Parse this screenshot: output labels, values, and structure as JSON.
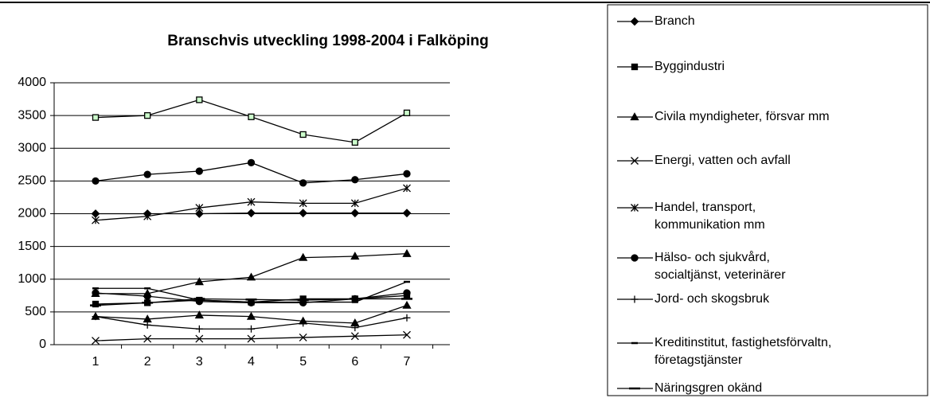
{
  "chart_data": {
    "type": "line",
    "title": "Branschvis utveckling 1998-2004 i Falköping",
    "categories": [
      "1",
      "2",
      "3",
      "4",
      "5",
      "6",
      "7"
    ],
    "ylim": [
      0,
      4000
    ],
    "yticks": [
      0,
      500,
      1000,
      1500,
      2000,
      2500,
      3000,
      3500,
      4000
    ],
    "grid": true,
    "series": [
      {
        "name": "Branch",
        "color": "#000000",
        "marker": "diamond",
        "values": [
          2000,
          2000,
          2000,
          2010,
          2010,
          2010,
          2010
        ]
      },
      {
        "name": "Byggindustri",
        "color": "#000000",
        "marker": "square",
        "values": [
          620,
          640,
          680,
          650,
          700,
          700,
          750
        ]
      },
      {
        "name": "Civila myndigheter, försvar mm",
        "color": "#000000",
        "marker": "triangle",
        "values": [
          780,
          780,
          960,
          1030,
          1330,
          1350,
          1390
        ]
      },
      {
        "name": "Energi, vatten och avfall",
        "color": "#000000",
        "marker": "x",
        "values": [
          60,
          90,
          90,
          90,
          110,
          130,
          150
        ]
      },
      {
        "name": "Handel, transport,\nkommunikation mm",
        "color": "#000000",
        "marker": "asterisk",
        "values": [
          1900,
          1960,
          2090,
          2180,
          2160,
          2160,
          2390
        ]
      },
      {
        "name": "Hälso- och sjukvård,\nsocialtjänst, veterinärer",
        "color": "#000000",
        "marker": "circle",
        "values": [
          2500,
          2600,
          2650,
          2780,
          2470,
          2520,
          2610
        ]
      },
      {
        "name": "Jord- och skogsbruk",
        "color": "#000000",
        "marker": "plus",
        "values": [
          430,
          300,
          240,
          240,
          330,
          260,
          410
        ]
      },
      {
        "name": "Kreditinstitut, fastighetsförvaltn,\nföretagstjänster",
        "color": "#000000",
        "marker": "dash",
        "values": [
          860,
          860,
          680,
          650,
          650,
          650,
          960
        ]
      },
      {
        "name": "Näringsgren okänd",
        "color": "#000000",
        "marker": "longdash",
        "values": [
          600,
          640,
          700,
          690,
          680,
          700,
          700
        ]
      },
      {
        "color": "#000000",
        "fill": "#ccffcc",
        "marker": "square",
        "values": [
          3470,
          3500,
          3740,
          3480,
          3210,
          3090,
          3540
        ]
      },
      {
        "color": "#000000",
        "marker": "triangle",
        "values": [
          430,
          390,
          450,
          430,
          360,
          330,
          600
        ]
      },
      {
        "color": "#000000",
        "marker": "circle",
        "values": [
          790,
          740,
          660,
          640,
          640,
          700,
          790
        ]
      }
    ]
  }
}
